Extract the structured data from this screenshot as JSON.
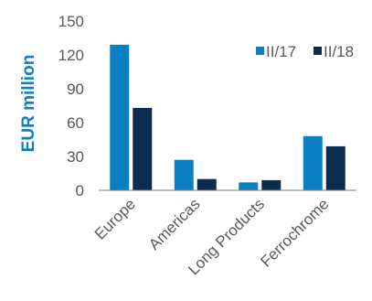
{
  "chart_data": {
    "type": "bar",
    "ylabel": "EUR million",
    "ylim": [
      0,
      150
    ],
    "yticks": [
      0,
      30,
      60,
      90,
      120,
      150
    ],
    "categories": [
      "Europe",
      "Americas",
      "Long Products",
      "Ferrochrome"
    ],
    "series": [
      {
        "name": "II/17",
        "values": [
          129,
          27,
          7,
          48
        ],
        "color": "#0a7fc1"
      },
      {
        "name": "II/18",
        "values": [
          73,
          10,
          9,
          39
        ],
        "color": "#0c2d4f"
      }
    ],
    "legend_position": "top-right",
    "grid": false,
    "axis_text_color": "#595959",
    "ylabel_color": "#0a7fc1"
  }
}
